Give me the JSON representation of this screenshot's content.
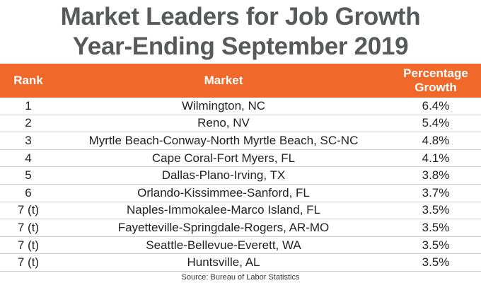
{
  "header": {
    "title": [
      "Market Leaders for Job Growth",
      "Year-Ending September 2019"
    ]
  },
  "table": {
    "columns": [
      "Rank",
      "Market",
      "Percentage Growth"
    ],
    "rows": [
      [
        "1",
        "Wilmington, NC",
        "6.4%"
      ],
      [
        "2",
        "Reno, NV",
        "5.4%"
      ],
      [
        "3",
        "Myrtle Beach-Conway-North Myrtle Beach, SC-NC",
        "4.8%"
      ],
      [
        "4",
        "Cape Coral-Fort Myers, FL",
        "4.1%"
      ],
      [
        "5",
        "Dallas-Plano-Irving, TX",
        "3.8%"
      ],
      [
        "6",
        "Orlando-Kissimmee-Sanford, FL",
        "3.7%"
      ],
      [
        "7 (t)",
        "Naples-Immokalee-Marco Island, FL",
        "3.5%"
      ],
      [
        "7 (t)",
        "Fayetteville-Springdale-Rogers, AR-MO",
        "3.5%"
      ],
      [
        "7 (t)",
        "Seattle-Bellevue-Everett, WA",
        "3.5%"
      ],
      [
        "7 (t)",
        "Huntsville, AL",
        "3.5%"
      ]
    ]
  },
  "footer": {
    "source": "Source: Bureau of Labor Statistics"
  }
}
